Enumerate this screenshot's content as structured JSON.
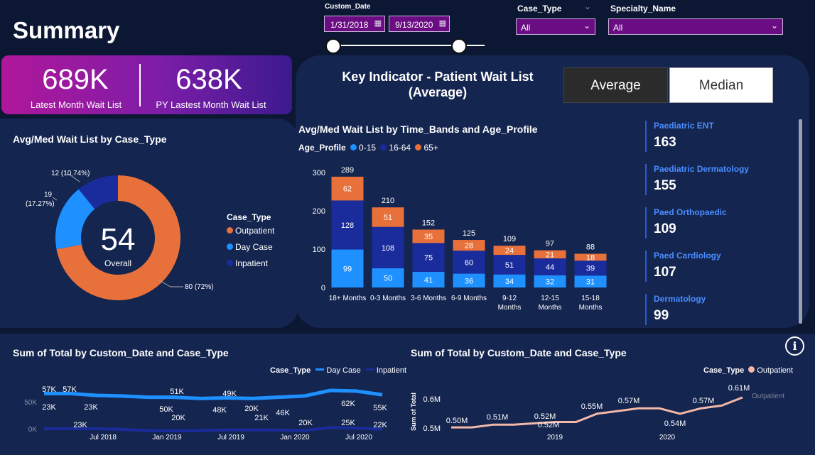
{
  "header": {
    "title": "Summary"
  },
  "filters": {
    "custom_date_label": "Custom_Date",
    "start_date": "1/31/2018",
    "end_date": "9/13/2020",
    "case_type_label": "Case_Type",
    "case_type_value": "All",
    "specialty_label": "Specialty_Name",
    "specialty_value": "All"
  },
  "kpis": {
    "latest_value": "689K",
    "latest_label": "Latest Month Wait List",
    "py_value": "638K",
    "py_label": "PY Lastest Month Wait List"
  },
  "key_indicator": {
    "title_line1": "Key Indicator - Patient Wait List",
    "title_line2": "(Average)",
    "btn_average": "Average",
    "btn_median": "Median"
  },
  "donut": {
    "title": "Avg/Med Wait List by Case_Type",
    "center_value": "54",
    "center_label": "Overall",
    "legend_title": "Case_Type",
    "labels": {
      "outpatient": "80 (72%)",
      "daycase_1": "19",
      "daycase_2": "(17.27%)",
      "inpatient": "12 (10.74%)"
    },
    "colors": {
      "outpatient": "#e8703a",
      "daycase": "#1e90ff",
      "inpatient": "#1a2c9c"
    }
  },
  "chart_data": [
    {
      "type": "bar",
      "title": "Avg/Med Wait List by Time_Bands and Age_Profile",
      "legend_title": "Age_Profile",
      "categories": [
        "18+ Months",
        "0-3 Months",
        "3-6 Months",
        "6-9 Months",
        "9-12 Months",
        "12-15 Months",
        "15-18 Months"
      ],
      "series": [
        {
          "name": "0-15",
          "color": "#1e90ff",
          "values": [
            99,
            50,
            41,
            36,
            34,
            32,
            31
          ]
        },
        {
          "name": "16-64",
          "color": "#1a2c9c",
          "values": [
            128,
            108,
            75,
            60,
            51,
            44,
            39
          ]
        },
        {
          "name": "65+",
          "color": "#e8703a",
          "values": [
            62,
            51,
            35,
            28,
            24,
            21,
            18
          ]
        }
      ],
      "totals": [
        289,
        210,
        152,
        125,
        109,
        97,
        88
      ],
      "yticks": [
        "300",
        "200",
        "100",
        "0"
      ],
      "ylim": [
        0,
        300
      ],
      "stacked": true
    },
    {
      "type": "pie",
      "title": "Avg/Med Wait List by Case_Type",
      "series": [
        {
          "name": "Outpatient",
          "values": [
            80
          ]
        },
        {
          "name": "Day Case",
          "values": [
            19
          ]
        },
        {
          "name": "Inpatient",
          "values": [
            12
          ]
        }
      ]
    },
    {
      "type": "line",
      "title": "Sum of Total by Custom_Date and Case_Type",
      "legend_title": "Case_Type",
      "x_ticks": [
        "Jul 2018",
        "Jan 2019",
        "Jul 2019",
        "Jan 2020",
        "Jul 2020"
      ],
      "y_ticks": [
        "50K",
        "0K"
      ],
      "series": [
        {
          "name": "Day Case",
          "color": "#1e90ff",
          "points": [
            57,
            57,
            54,
            53,
            51,
            51,
            49,
            50,
            49,
            51,
            53,
            62,
            61,
            55
          ]
        },
        {
          "name": "Inpatient",
          "color": "#1a2c9c",
          "points": [
            23,
            23,
            23,
            22,
            20,
            20,
            20,
            21,
            21,
            21,
            20,
            25,
            24,
            22
          ]
        }
      ],
      "data_labels": [
        "57K",
        "57K",
        "23K",
        "23K",
        "23K",
        "51K",
        "50K",
        "20K",
        "49K",
        "48K",
        "20K",
        "20K",
        "21K",
        "46K",
        "20K",
        "62K",
        "55K",
        "25K",
        "22K"
      ]
    },
    {
      "type": "line",
      "title": "Sum of Total by Custom_Date and Case_Type",
      "legend_title": "Case_Type",
      "ylabel": "Sum of Total",
      "y_ticks": [
        "0.6M",
        "0.5M"
      ],
      "x_ticks": [
        "2019",
        "2020"
      ],
      "series": [
        {
          "name": "Outpatient",
          "color": "#f2b8a8",
          "points": [
            0.5,
            0.5,
            0.51,
            0.51,
            0.515,
            0.52,
            0.52,
            0.55,
            0.56,
            0.57,
            0.57,
            0.55,
            0.57,
            0.58,
            0.61
          ]
        }
      ],
      "data_labels": [
        "0.50M",
        "0.51M",
        "0.52M",
        "0.52M",
        "0.55M",
        "0.57M",
        "0.54M",
        "0.57M",
        "0.61M"
      ],
      "end_label": "Outpatient"
    }
  ],
  "specialties": [
    {
      "name": "Paediatric ENT",
      "value": "163"
    },
    {
      "name": "Paediatric Dermatology",
      "value": "155"
    },
    {
      "name": "Paed Orthopaedic",
      "value": "109"
    },
    {
      "name": "Paed Cardiology",
      "value": "107"
    },
    {
      "name": "Dermatology",
      "value": "99"
    }
  ],
  "icons": {
    "info": "info-icon",
    "calendar": "calendar-icon",
    "chevron": "chevron-down-icon"
  }
}
